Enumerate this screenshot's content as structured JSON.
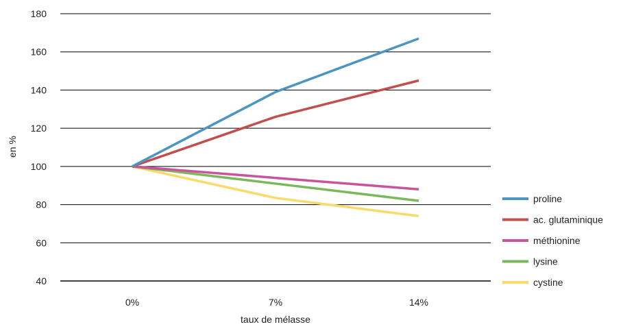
{
  "chart_data": {
    "type": "line",
    "title": "",
    "xlabel": "taux de mélasse",
    "ylabel": "en %",
    "categories": [
      "0%",
      "7%",
      "14%"
    ],
    "ylim": [
      40,
      180
    ],
    "yticks": [
      40,
      60,
      80,
      100,
      120,
      140,
      160,
      180
    ],
    "grid": "horizontal",
    "legend_position": "right",
    "series": [
      {
        "name": "proline",
        "color": "#4a96c0",
        "values": [
          100,
          139,
          167
        ]
      },
      {
        "name": "ac. glutaminique",
        "color": "#c0504d",
        "values": [
          100,
          126,
          145
        ]
      },
      {
        "name": "méthionine",
        "color": "#c9549c",
        "values": [
          100,
          94,
          88
        ]
      },
      {
        "name": "lysine",
        "color": "#7ab85c",
        "values": [
          100,
          91,
          82
        ]
      },
      {
        "name": "cystine",
        "color": "#f9da6a",
        "values": [
          100,
          83.5,
          74
        ]
      }
    ]
  }
}
